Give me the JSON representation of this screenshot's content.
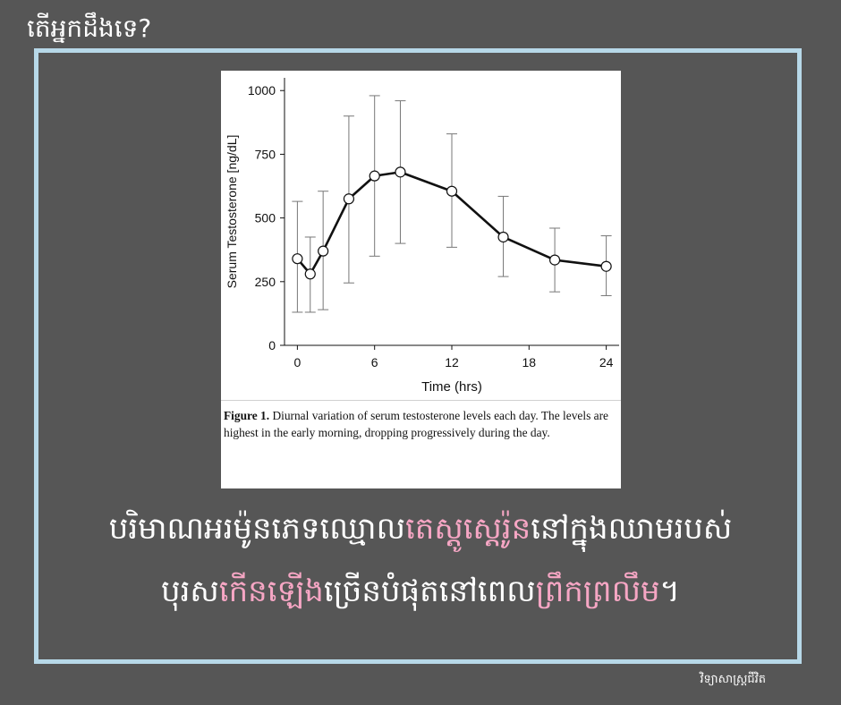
{
  "header": {
    "title": "តើអ្នកដឹងទេ?"
  },
  "figure": {
    "caption_label": "Figure 1.",
    "caption_text": "Diurnal variation of serum testosterone levels each day. The levels are highest in the early morning, dropping progressively during the day."
  },
  "chart_data": {
    "type": "line",
    "xlabel": "Time (hrs)",
    "ylabel": "Serum Testosterone [ng/dL]",
    "xlim": [
      -1,
      25
    ],
    "ylim": [
      0,
      1050
    ],
    "x_ticks": [
      0,
      6,
      12,
      18,
      24
    ],
    "y_ticks": [
      0,
      250,
      500,
      750,
      1000
    ],
    "series": [
      {
        "x": [
          0,
          1,
          2,
          4,
          6,
          8,
          12,
          16,
          20,
          24
        ],
        "y": [
          340,
          280,
          370,
          575,
          665,
          680,
          605,
          425,
          335,
          310
        ],
        "err_low": [
          130,
          130,
          140,
          245,
          350,
          400,
          385,
          270,
          210,
          195
        ],
        "err_high": [
          565,
          425,
          605,
          900,
          980,
          960,
          830,
          585,
          460,
          430
        ]
      }
    ],
    "colors": {
      "line": "#111111",
      "marker_fill": "#ffffff"
    }
  },
  "message": {
    "line1_a": "បរិមាណអរម៉ូនភេទឈ្មោល",
    "line1_b": "តេស្តូស្តេរ៉ូន",
    "line1_c": "នៅក្នុងឈាមរបស់",
    "line2_a": "បុរស",
    "line2_b": "កើនឡើង",
    "line2_c": "ច្រើនបំផុតនៅពេល",
    "line2_d": "ព្រឹកព្រលឹម",
    "line2_e": "។"
  },
  "footer": {
    "credit": "វិទ្យាសាស្ត្រជីវិត"
  },
  "colors": {
    "background": "#565656",
    "frame": "#b7d8e8",
    "highlight": "#f6a6c4"
  }
}
